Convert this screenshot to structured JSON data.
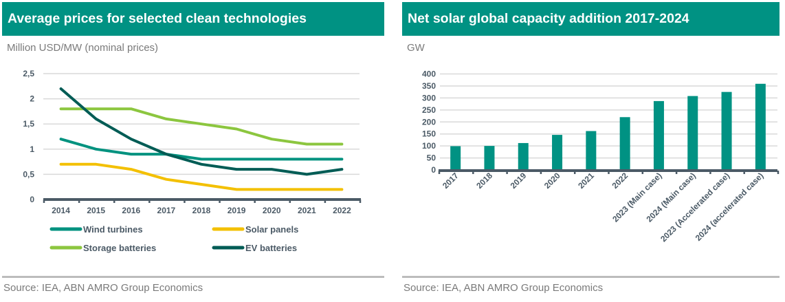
{
  "left_panel": {
    "title": "Average prices for selected clean technologies",
    "unit": "Million USD/MW (nominal prices)",
    "source": "Source: IEA, ABN AMRO Group Economics"
  },
  "right_panel": {
    "title": "Net solar global capacity addition 2017-2024",
    "unit": "GW",
    "source": "Source: IEA, ABN AMRO Group Economics"
  },
  "colors": {
    "header_bg": "#009283",
    "bar": "#009283",
    "axis": "#4b5a66",
    "grid": "#d9d9d9"
  },
  "chart_data": [
    {
      "type": "line",
      "title": "Average prices for selected clean technologies",
      "ylabel": "Million USD/MW (nominal prices)",
      "xlabel": "",
      "x": [
        "2014",
        "2015",
        "2016",
        "2017",
        "2018",
        "2019",
        "2020",
        "2021",
        "2022"
      ],
      "ylim": [
        0,
        2.5
      ],
      "yticks": [
        0,
        0.5,
        1,
        1.5,
        2,
        2.5
      ],
      "ytick_labels": [
        "0",
        "0,5",
        "1",
        "1,5",
        "2",
        "2,5"
      ],
      "grid": true,
      "legend_position": "bottom",
      "series": [
        {
          "name": "Wind turbines",
          "color": "#00927f",
          "values": [
            1.2,
            1.0,
            0.9,
            0.9,
            0.8,
            0.8,
            0.8,
            0.8,
            0.8
          ]
        },
        {
          "name": "Solar panels",
          "color": "#f3c000",
          "values": [
            0.7,
            0.7,
            0.6,
            0.4,
            0.3,
            0.2,
            0.2,
            0.2,
            0.2
          ]
        },
        {
          "name": "Storage batteries",
          "color": "#8cc63f",
          "values": [
            1.8,
            1.8,
            1.8,
            1.6,
            1.5,
            1.4,
            1.2,
            1.1,
            1.1
          ]
        },
        {
          "name": "EV batteries",
          "color": "#005c55",
          "values": [
            2.2,
            1.6,
            1.2,
            0.9,
            0.7,
            0.6,
            0.6,
            0.5,
            0.6
          ]
        }
      ]
    },
    {
      "type": "bar",
      "title": "Net solar global capacity addition 2017-2024",
      "ylabel": "GW",
      "xlabel": "",
      "categories": [
        "2017",
        "2018",
        "2019",
        "2020",
        "2021",
        "2022",
        "2023 (Main case)",
        "2024 (Main case)",
        "2023 (Accelerated case)",
        "2024 (accelerated case)"
      ],
      "values": [
        99,
        100,
        112,
        146,
        162,
        220,
        287,
        308,
        325,
        359
      ],
      "ylim": [
        0,
        400
      ],
      "yticks": [
        0,
        50,
        100,
        150,
        200,
        250,
        300,
        350,
        400
      ],
      "ytick_labels": [
        "0",
        "50",
        "100",
        "150",
        "200",
        "250",
        "300",
        "350",
        "400"
      ],
      "grid": true,
      "color": "#009283"
    }
  ]
}
